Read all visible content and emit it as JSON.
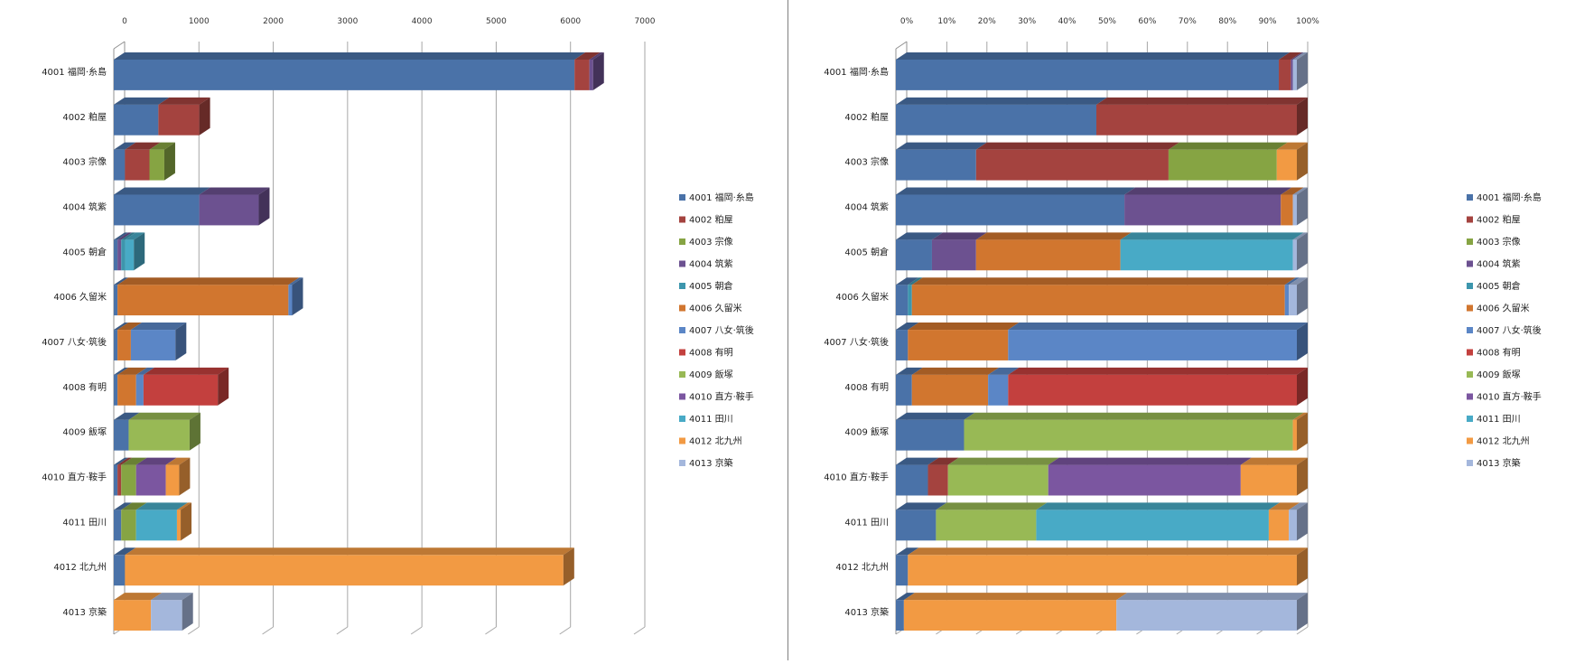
{
  "colors": [
    "#4a72a8",
    "#a4433f",
    "#86a443",
    "#6c5190",
    "#3d96ad",
    "#d1762f",
    "#5b86c6",
    "#c3403e",
    "#98b955",
    "#7b56a0",
    "#48aac6",
    "#f29a43",
    "#a4b7dc"
  ],
  "chart_data": [
    {
      "type": "bar",
      "stacked": true,
      "orientation": "horizontal",
      "categories": [
        "4001 福岡·糸島",
        "4002 粕屋",
        "4003 宗像",
        "4004 筑紫",
        "4005 朝倉",
        "4006 久留米",
        "4007 八女·筑後",
        "4008 有明",
        "4009 飯塚",
        "4010 直方·鞍手",
        "4011 田川",
        "4012 北九州",
        "4013 京築"
      ],
      "xticks": [
        "0",
        "1000",
        "2000",
        "3000",
        "4000",
        "5000",
        "6000",
        "7000"
      ],
      "xlim": [
        0,
        7000
      ],
      "legend": "right",
      "grid": true,
      "series": [
        {
          "name": "4001 福岡·糸島",
          "values": [
            6200,
            600,
            150,
            1150,
            50,
            50,
            50,
            50,
            200,
            50,
            100,
            150,
            0
          ]
        },
        {
          "name": "4002 粕屋",
          "values": [
            200,
            550,
            330,
            0,
            0,
            0,
            0,
            0,
            0,
            50,
            0,
            0,
            0
          ]
        },
        {
          "name": "4003 宗像",
          "values": [
            0,
            0,
            200,
            0,
            0,
            0,
            0,
            0,
            0,
            200,
            200,
            0,
            0
          ]
        },
        {
          "name": "4004 筑紫",
          "values": [
            50,
            0,
            0,
            800,
            50,
            0,
            0,
            0,
            0,
            0,
            0,
            0,
            0
          ]
        },
        {
          "name": "4005 朝倉",
          "values": [
            0,
            0,
            0,
            0,
            50,
            0,
            0,
            0,
            0,
            0,
            0,
            0,
            0
          ]
        },
        {
          "name": "4006 久留米",
          "values": [
            0,
            0,
            0,
            0,
            0,
            2300,
            180,
            250,
            0,
            0,
            0,
            0,
            0
          ]
        },
        {
          "name": "4007 八女·筑後",
          "values": [
            0,
            0,
            0,
            0,
            0,
            50,
            600,
            100,
            0,
            0,
            0,
            0,
            0
          ]
        },
        {
          "name": "4008 有明",
          "values": [
            0,
            0,
            0,
            0,
            0,
            0,
            0,
            1000,
            0,
            0,
            0,
            0,
            0
          ]
        },
        {
          "name": "4009 飯塚",
          "values": [
            0,
            0,
            0,
            0,
            0,
            0,
            0,
            0,
            820,
            0,
            0,
            0,
            0
          ]
        },
        {
          "name": "4010 直方·鞍手",
          "values": [
            0,
            0,
            0,
            0,
            0,
            0,
            0,
            0,
            0,
            400,
            0,
            0,
            0
          ]
        },
        {
          "name": "4011 田川",
          "values": [
            0,
            0,
            0,
            0,
            120,
            0,
            0,
            0,
            0,
            0,
            550,
            0,
            0
          ]
        },
        {
          "name": "4012 北九州",
          "values": [
            0,
            0,
            0,
            0,
            0,
            0,
            0,
            0,
            0,
            180,
            50,
            5900,
            500
          ]
        },
        {
          "name": "4013 京築",
          "values": [
            0,
            0,
            0,
            0,
            0,
            0,
            0,
            0,
            0,
            0,
            0,
            0,
            420
          ]
        }
      ]
    },
    {
      "type": "bar",
      "stacked": true,
      "percent": true,
      "orientation": "horizontal",
      "categories": [
        "4001 福岡·糸島",
        "4002 粕屋",
        "4003 宗像",
        "4004 筑紫",
        "4005 朝倉",
        "4006 久留米",
        "4007 八女·筑後",
        "4008 有明",
        "4009 飯塚",
        "4010 直方·鞍手",
        "4011 田川",
        "4012 北九州",
        "4013 京築"
      ],
      "xticks": [
        "0%",
        "10%",
        "20%",
        "30%",
        "40%",
        "50%",
        "60%",
        "70%",
        "80%",
        "90%",
        "100%"
      ],
      "xlim": [
        0,
        100
      ],
      "legend": "right",
      "grid": true,
      "series": [
        {
          "name": "4001 福岡·糸島",
          "values": [
            95.5,
            50,
            20,
            57,
            9,
            3,
            3,
            4,
            17,
            8,
            10,
            3,
            2
          ]
        },
        {
          "name": "4002 粕屋",
          "values": [
            3,
            50,
            48,
            0,
            0,
            0,
            0,
            0,
            0,
            5,
            0,
            0,
            0
          ]
        },
        {
          "name": "4003 宗像",
          "values": [
            0,
            0,
            27,
            0,
            0,
            0,
            0,
            0,
            0,
            0,
            0,
            0,
            0
          ]
        },
        {
          "name": "4004 筑紫",
          "values": [
            0.5,
            0,
            0,
            39,
            11,
            0,
            0,
            0,
            0,
            0,
            0,
            0,
            0
          ]
        },
        {
          "name": "4005 朝倉",
          "values": [
            0,
            0,
            0,
            0,
            0,
            1,
            0,
            0,
            0,
            0,
            0,
            0,
            0
          ]
        },
        {
          "name": "4006 久留米",
          "values": [
            0,
            0,
            0,
            3,
            36,
            93,
            25,
            19,
            0,
            0,
            0,
            0,
            0
          ]
        },
        {
          "name": "4007 八女·筑後",
          "values": [
            0,
            0,
            0,
            0,
            0,
            1,
            72,
            5,
            0,
            0,
            0,
            0,
            0
          ]
        },
        {
          "name": "4008 有明",
          "values": [
            0,
            0,
            0,
            0,
            0,
            0,
            0,
            72,
            0,
            0,
            0,
            0,
            0
          ]
        },
        {
          "name": "4009 飯塚",
          "values": [
            0,
            0,
            0,
            0,
            0,
            0,
            0,
            0,
            82,
            25,
            25,
            0,
            0
          ]
        },
        {
          "name": "4010 直方·鞍手",
          "values": [
            0,
            0,
            0,
            0,
            0,
            0,
            0,
            0,
            0,
            48,
            0,
            0,
            0
          ]
        },
        {
          "name": "4011 田川",
          "values": [
            0,
            0,
            0,
            0,
            43,
            0,
            0,
            0,
            0,
            0,
            58,
            0,
            0
          ]
        },
        {
          "name": "4012 北九州",
          "values": [
            0,
            0,
            5,
            0,
            0,
            0,
            0,
            0,
            1,
            14,
            5,
            97,
            53
          ]
        },
        {
          "name": "4013 京築",
          "values": [
            1,
            0,
            0,
            1,
            1,
            2,
            0,
            0,
            0,
            0,
            2,
            0,
            45
          ]
        }
      ]
    }
  ]
}
